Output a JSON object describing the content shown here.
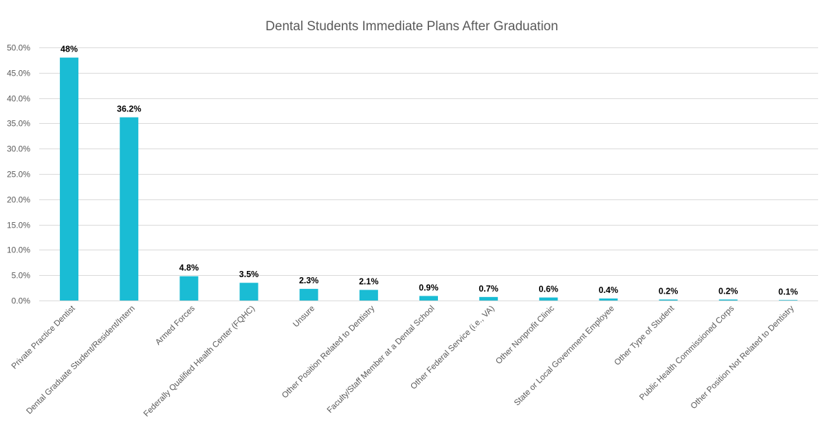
{
  "chart_data": {
    "type": "bar",
    "title": "Dental Students Immediate Plans After Graduation",
    "xlabel": "",
    "ylabel": "",
    "ylim": [
      0,
      50
    ],
    "yticks": [
      0,
      5,
      10,
      15,
      20,
      25,
      30,
      35,
      40,
      45,
      50
    ],
    "ytick_labels": [
      "0.0%",
      "5.0%",
      "10.0%",
      "15.0%",
      "20.0%",
      "25.0%",
      "30.0%",
      "35.0%",
      "40.0%",
      "45.0%",
      "50.0%"
    ],
    "grid": true,
    "legend": "none",
    "bar_color": "#1abcd4",
    "categories": [
      "Private Practice Dentist",
      "Dental Graduate Student/Resident/Intern",
      "Armed Forces",
      "Federally Qualified Health Center (FQHC)",
      "Unsure",
      "Other Position Related to Dentistry",
      "Faculty/Staff Member at a Dental School",
      "Other Federal Service (i.e., VA)",
      "Other Nonprofit Clinic",
      "State or Local Government Employee",
      "Other Type of Student",
      "Public Health Commissioned Corps",
      "Other Position Not Related to Dentistry"
    ],
    "values": [
      48,
      36.2,
      4.8,
      3.5,
      2.3,
      2.1,
      0.9,
      0.7,
      0.6,
      0.4,
      0.2,
      0.2,
      0.1
    ],
    "data_labels": [
      "48%",
      "36.2%",
      "4.8%",
      "3.5%",
      "2.3%",
      "2.1%",
      "0.9%",
      "0.7%",
      "0.6%",
      "0.4%",
      "0.2%",
      "0.2%",
      "0.1%"
    ]
  }
}
